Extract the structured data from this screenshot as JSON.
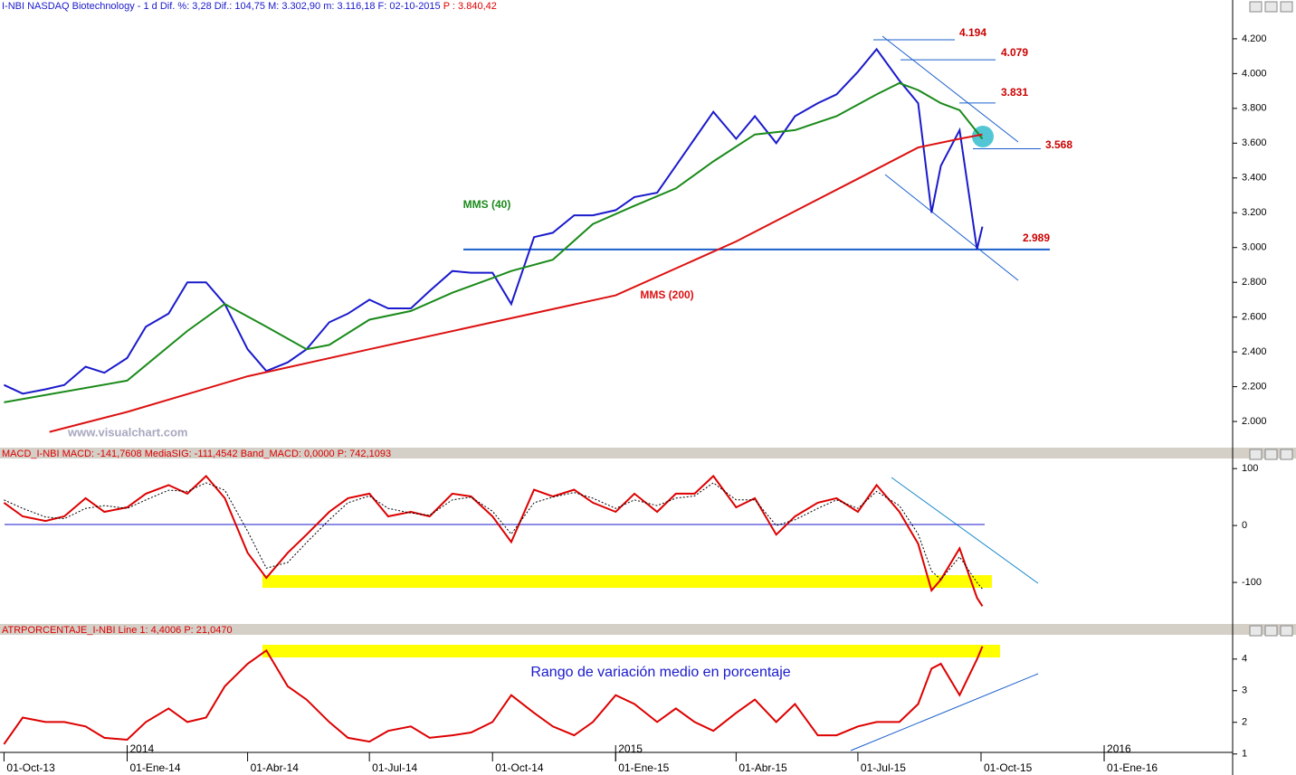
{
  "chart_data": [
    {
      "type": "line",
      "header": "I-NBI  NASDAQ Biotechnology - 1 d Dif. %: 3,28 Dif.: 104,75 M: 3.302,90 m: 3.116,18 F: 02-10-2015",
      "header_extra": "P : 3.840,42",
      "watermark": "www.visualchart.com",
      "xlim": [
        "2013-09-28",
        "2016-04-06"
      ],
      "ylim": [
        1860,
        4345
      ],
      "yticks": [
        {
          "value": 2000,
          "label": "2.000"
        },
        {
          "value": 2200,
          "label": "2.200"
        },
        {
          "value": 2400,
          "label": "2.400"
        },
        {
          "value": 2600,
          "label": "2.600"
        },
        {
          "value": 2800,
          "label": "2.800"
        },
        {
          "value": 3000,
          "label": "3.000"
        },
        {
          "value": 3200,
          "label": "3.200"
        },
        {
          "value": 3400,
          "label": "3.400"
        },
        {
          "value": 3600,
          "label": "3.600"
        },
        {
          "value": 3800,
          "label": "3.800"
        },
        {
          "value": 4000,
          "label": "4.000"
        },
        {
          "value": 4200,
          "label": "4.200"
        }
      ],
      "levels": [
        {
          "value": 4194,
          "label": "4.194"
        },
        {
          "value": 4079,
          "label": "4.079"
        },
        {
          "value": 3831,
          "label": "3.831"
        },
        {
          "value": 3568,
          "label": "3.568"
        },
        {
          "value": 2989,
          "label": "2.989"
        }
      ],
      "series": [
        {
          "color": "#1a1acc",
          "x": [
            "2013-10-01",
            "2013-10-15",
            "2013-11-01",
            "2013-11-15",
            "2013-12-01",
            "2013-12-15",
            "2014-01-01",
            "2014-01-15",
            "2014-02-01",
            "2014-02-15",
            "2014-03-01",
            "2014-03-15",
            "2014-04-01",
            "2014-04-15",
            "2014-05-01",
            "2014-05-15",
            "2014-06-01",
            "2014-06-15",
            "2014-07-01",
            "2014-07-15",
            "2014-08-01",
            "2014-08-15",
            "2014-09-01",
            "2014-09-15",
            "2014-10-01",
            "2014-10-15",
            "2014-11-01",
            "2014-11-15",
            "2014-12-01",
            "2014-12-15",
            "2015-01-01",
            "2015-01-15",
            "2015-02-01",
            "2015-02-15",
            "2015-03-01",
            "2015-03-15",
            "2015-04-01",
            "2015-04-15",
            "2015-05-01",
            "2015-05-15",
            "2015-06-01",
            "2015-06-15",
            "2015-07-01",
            "2015-07-15",
            "2015-08-01",
            "2015-08-15",
            "2015-08-25",
            "2015-09-01",
            "2015-09-15",
            "2015-09-28",
            "2015-10-02"
          ],
          "values": [
            2210,
            2160,
            2185,
            2210,
            2315,
            2280,
            2365,
            2545,
            2620,
            2800,
            2800,
            2675,
            2415,
            2290,
            2340,
            2415,
            2570,
            2620,
            2700,
            2650,
            2650,
            2750,
            2865,
            2855,
            2855,
            2675,
            3060,
            3085,
            3185,
            3185,
            3215,
            3290,
            3315,
            3470,
            3625,
            3780,
            3625,
            3755,
            3600,
            3755,
            3830,
            3880,
            4010,
            4140,
            3960,
            3830,
            3200,
            3470,
            3675,
            2990,
            3120
          ]
        },
        {
          "name": "MMS (40)",
          "color": "#1a8a1a",
          "x": [
            "2013-10-01",
            "2014-01-01",
            "2014-02-15",
            "2014-03-15",
            "2014-04-15",
            "2014-05-15",
            "2014-06-01",
            "2014-07-01",
            "2014-08-01",
            "2014-09-01",
            "2014-10-01",
            "2014-10-15",
            "2014-11-15",
            "2014-12-15",
            "2015-01-15",
            "2015-02-15",
            "2015-03-15",
            "2015-04-15",
            "2015-05-15",
            "2015-06-15",
            "2015-07-15",
            "2015-08-01",
            "2015-08-15",
            "2015-09-01",
            "2015-09-15",
            "2015-10-02"
          ],
          "values": [
            2110,
            2235,
            2520,
            2675,
            2545,
            2415,
            2440,
            2585,
            2635,
            2740,
            2825,
            2865,
            2930,
            3135,
            3240,
            3340,
            3495,
            3650,
            3675,
            3755,
            3880,
            3945,
            3905,
            3830,
            3790,
            3625
          ]
        },
        {
          "name": "MMS (200)",
          "color": "#dd1111",
          "x": [
            "2013-11-04",
            "2014-01-01",
            "2014-04-01",
            "2014-07-01",
            "2014-10-01",
            "2015-01-01",
            "2015-04-01",
            "2015-07-01",
            "2015-08-15",
            "2015-09-15",
            "2015-10-02"
          ],
          "values": [
            1940,
            2055,
            2260,
            2415,
            2570,
            2725,
            3035,
            3395,
            3575,
            3625,
            3650
          ]
        }
      ]
    },
    {
      "type": "line",
      "header": "MACD_I-NBI MACD: -141,7608 MediaSIG: -111,4542 Band_MACD: 0,0000",
      "header_extra": "P: 742,1093",
      "xlim": [
        "2013-09-28",
        "2016-04-06"
      ],
      "ylim": [
        -173,
        113
      ],
      "yticks": [
        -100,
        0,
        100
      ],
      "x": [
        "2013-10-01",
        "2013-10-15",
        "2013-11-01",
        "2013-11-15",
        "2013-12-01",
        "2013-12-15",
        "2014-01-01",
        "2014-01-15",
        "2014-02-01",
        "2014-02-15",
        "2014-03-01",
        "2014-03-15",
        "2014-04-01",
        "2014-04-15",
        "2014-05-01",
        "2014-05-15",
        "2014-06-01",
        "2014-06-15",
        "2014-07-01",
        "2014-07-15",
        "2014-08-01",
        "2014-08-15",
        "2014-09-01",
        "2014-09-15",
        "2014-10-01",
        "2014-10-15",
        "2014-11-01",
        "2014-11-15",
        "2014-12-01",
        "2014-12-15",
        "2015-01-01",
        "2015-01-15",
        "2015-02-01",
        "2015-02-15",
        "2015-03-01",
        "2015-03-15",
        "2015-04-01",
        "2015-04-15",
        "2015-05-01",
        "2015-05-15",
        "2015-06-01",
        "2015-06-15",
        "2015-07-01",
        "2015-07-15",
        "2015-08-01",
        "2015-08-15",
        "2015-08-25",
        "2015-09-01",
        "2015-09-15",
        "2015-09-28",
        "2015-10-02"
      ],
      "series": [
        {
          "color": "#dd0000",
          "values": [
            40,
            16,
            8,
            16,
            48,
            24,
            32,
            56,
            71,
            56,
            87,
            48,
            -48,
            -92,
            -48,
            -16,
            24,
            48,
            56,
            16,
            24,
            16,
            56,
            51,
            16,
            -29,
            63,
            51,
            63,
            40,
            24,
            56,
            24,
            56,
            56,
            87,
            32,
            48,
            -16,
            16,
            40,
            48,
            24,
            71,
            24,
            -32,
            -114,
            -95,
            -40,
            -127,
            -141.76
          ]
        },
        {
          "color": "#000000",
          "dash": true,
          "values": [
            45,
            30,
            15,
            12,
            30,
            35,
            30,
            45,
            62,
            60,
            75,
            62,
            -10,
            -75,
            -65,
            -30,
            10,
            40,
            52,
            30,
            22,
            18,
            45,
            50,
            25,
            -15,
            40,
            50,
            58,
            48,
            30,
            45,
            35,
            48,
            52,
            75,
            45,
            45,
            0,
            10,
            30,
            45,
            30,
            60,
            35,
            -15,
            -80,
            -95,
            -55,
            -100,
            -111.45
          ]
        }
      ]
    },
    {
      "type": "line",
      "header": "ATRPORCENTAJE_I-NBI Line 1: 4,4006",
      "header_extra": "P: 21,0470",
      "annotation": "Rango de variación medio en porcentaje",
      "xlim": [
        "2013-09-28",
        "2016-04-06"
      ],
      "ylim": [
        1.05,
        4.68
      ],
      "yticks": [
        1,
        2,
        3,
        4
      ],
      "xticks": [
        {
          "value": "2013-10-01",
          "label": "01-Oct-13"
        },
        {
          "value": "2014-01-01",
          "label": "01-Ene-14"
        },
        {
          "value": "2014-04-01",
          "label": "01-Abr-14"
        },
        {
          "value": "2014-07-01",
          "label": "01-Jul-14"
        },
        {
          "value": "2014-10-01",
          "label": "01-Oct-14"
        },
        {
          "value": "2015-01-01",
          "label": "01-Ene-15"
        },
        {
          "value": "2015-04-01",
          "label": "01-Abr-15"
        },
        {
          "value": "2015-07-01",
          "label": "01-Jul-15"
        },
        {
          "value": "2015-10-01",
          "label": "01-Oct-15"
        },
        {
          "value": "2016-01-01",
          "label": "01-Ene-16"
        }
      ],
      "year_ticks": [
        {
          "value": "2014-01-01",
          "label": "2014"
        },
        {
          "value": "2015-01-01",
          "label": "2015"
        },
        {
          "value": "2016-01-01",
          "label": "2016"
        }
      ],
      "x": [
        "2013-10-01",
        "2013-10-15",
        "2013-11-01",
        "2013-11-15",
        "2013-12-01",
        "2013-12-15",
        "2014-01-01",
        "2014-01-15",
        "2014-02-01",
        "2014-02-15",
        "2014-03-01",
        "2014-03-15",
        "2014-04-01",
        "2014-04-15",
        "2014-05-01",
        "2014-05-15",
        "2014-06-01",
        "2014-06-15",
        "2014-07-01",
        "2014-07-15",
        "2014-08-01",
        "2014-08-15",
        "2014-09-01",
        "2014-09-15",
        "2014-10-01",
        "2014-10-15",
        "2014-11-01",
        "2014-11-15",
        "2014-12-01",
        "2014-12-15",
        "2015-01-01",
        "2015-01-15",
        "2015-02-01",
        "2015-02-15",
        "2015-03-01",
        "2015-03-15",
        "2015-04-01",
        "2015-04-15",
        "2015-05-01",
        "2015-05-15",
        "2015-06-01",
        "2015-06-15",
        "2015-07-01",
        "2015-07-15",
        "2015-08-01",
        "2015-08-15",
        "2015-08-25",
        "2015-09-01",
        "2015-09-15",
        "2015-09-28",
        "2015-10-02"
      ],
      "series": [
        {
          "color": "#dd0000",
          "values": [
            1.31,
            2.15,
            2.01,
            2.01,
            1.87,
            1.51,
            1.45,
            2.01,
            2.44,
            2.01,
            2.15,
            3.14,
            3.85,
            4.27,
            3.14,
            2.72,
            2.01,
            1.51,
            1.39,
            1.73,
            1.87,
            1.51,
            1.59,
            1.68,
            2.01,
            2.86,
            2.3,
            1.87,
            1.59,
            2.01,
            2.86,
            2.58,
            2.01,
            2.44,
            2.01,
            1.73,
            2.3,
            2.72,
            2.01,
            2.58,
            1.59,
            1.59,
            1.87,
            2.01,
            2.01,
            2.58,
            3.7,
            3.85,
            2.86,
            3.99,
            4.4
          ]
        }
      ]
    }
  ]
}
